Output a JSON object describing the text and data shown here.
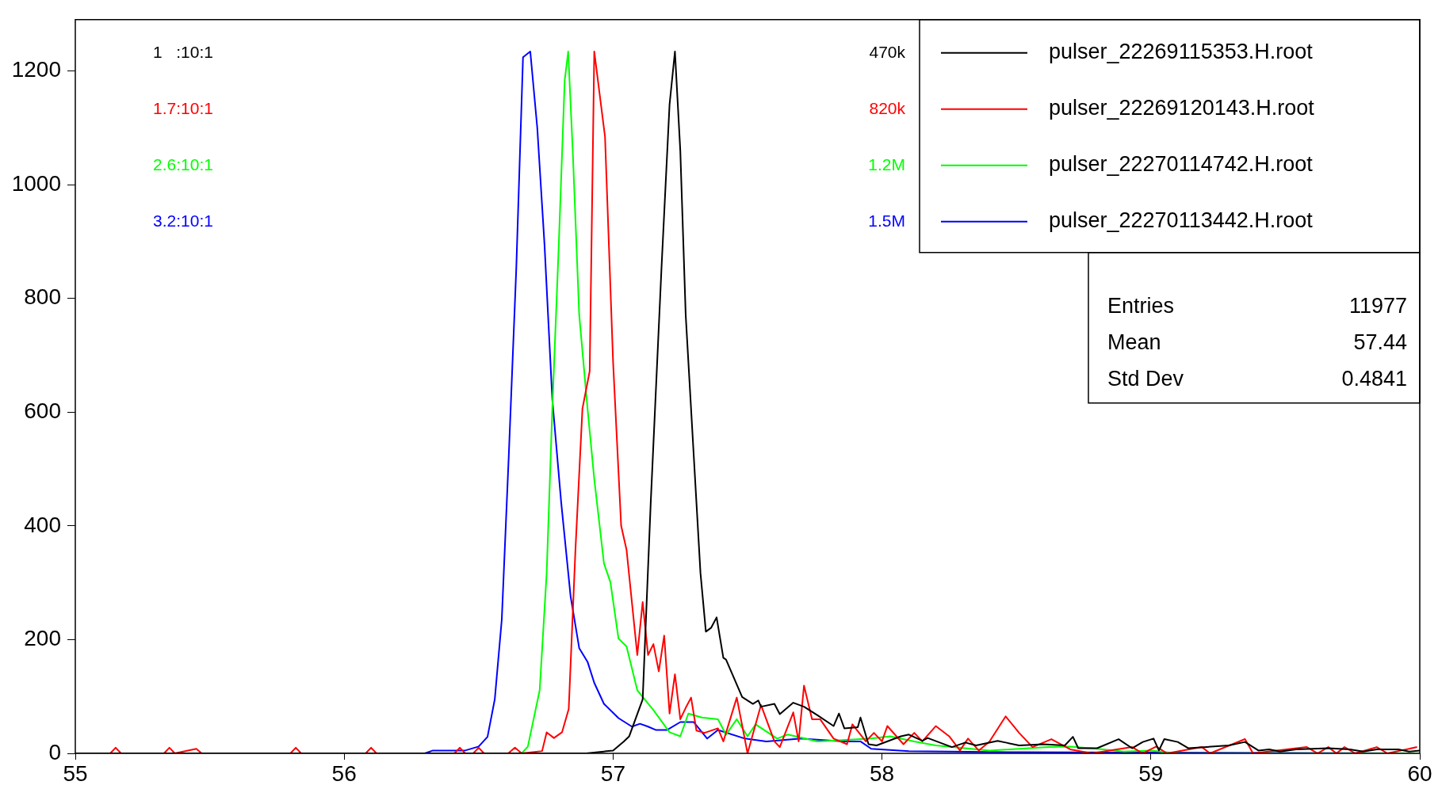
{
  "chart_data": {
    "type": "line",
    "xlim": [
      55,
      60
    ],
    "xticks": [
      55,
      56,
      57,
      58,
      59,
      60
    ],
    "ylim": [
      0,
      1290
    ],
    "yticks": [
      0,
      200,
      400,
      600,
      800,
      1000,
      1200
    ],
    "grid": false,
    "legend": "top right",
    "marker": "none",
    "line_style": "solid",
    "annotations": [
      "1   :10:1",
      "1.7:10:1",
      "2.6:10:1",
      "3.2:10:1",
      "470k",
      "820k",
      "1.2M",
      "1.5M",
      "Entries",
      "11977",
      "Mean",
      "57.44",
      "Std Dev",
      "0.4841"
    ],
    "series": [
      {
        "name": "pulser_22269115353.H.root",
        "color": "#000000",
        "x": [
          55,
          56.9,
          57.0,
          57.04,
          57.06,
          57.11,
          57.14,
          57.18,
          57.21,
          57.23,
          57.25,
          57.27,
          57.3,
          57.325,
          57.345,
          57.365,
          57.385,
          57.41,
          57.42,
          57.48,
          57.52,
          57.54,
          57.55,
          57.6,
          57.62,
          57.67,
          57.71,
          57.76,
          57.82,
          57.84,
          57.86,
          57.91,
          57.92,
          57.95,
          57.98,
          58.07,
          58.1,
          58.15,
          58.17,
          58.26,
          58.31,
          58.35,
          58.43,
          58.46,
          58.51,
          58.6,
          58.68,
          58.71,
          58.73,
          58.8,
          58.88,
          58.93,
          58.97,
          59.01,
          59.03,
          59.05,
          59.1,
          59.14,
          59.29,
          59.35,
          59.4,
          59.44,
          59.48,
          59.54,
          59.66,
          59.74,
          59.79,
          59.84,
          59.92,
          59.96,
          60
        ],
        "values": [
          0,
          0,
          5,
          21,
          30,
          95,
          441,
          853,
          1141,
          1234,
          1059,
          771,
          523,
          317,
          214,
          221,
          239,
          168,
          165,
          99,
          87,
          93,
          82,
          87,
          69,
          89,
          82,
          67,
          48,
          70,
          44,
          46,
          63,
          16,
          14,
          30,
          33,
          22,
          27,
          11,
          19,
          14,
          22,
          19,
          14,
          16,
          14,
          29,
          9,
          9,
          25,
          9,
          20,
          26,
          5,
          25,
          20,
          9,
          14,
          20,
          5,
          7,
          3,
          7,
          9,
          7,
          3,
          7,
          7,
          3,
          5
        ]
      },
      {
        "name": "pulser_22269120143.H.root",
        "color": "#ff0000",
        "x": [
          55,
          55.13,
          55.15,
          55.17,
          55.33,
          55.35,
          55.37,
          55.45,
          55.47,
          55.8,
          55.82,
          55.84,
          56.08,
          56.1,
          56.12,
          56.41,
          56.43,
          56.45,
          56.48,
          56.5,
          56.52,
          56.61,
          56.635,
          56.66,
          56.736,
          56.753,
          56.78,
          56.81,
          56.835,
          56.86,
          56.886,
          56.913,
          56.93,
          56.97,
          57.0,
          57.03,
          57.05,
          57.09,
          57.11,
          57.13,
          57.15,
          57.17,
          57.19,
          57.21,
          57.23,
          57.25,
          57.27,
          57.29,
          57.31,
          57.34,
          57.39,
          57.41,
          57.46,
          57.5,
          57.55,
          57.6,
          57.62,
          57.67,
          57.69,
          57.71,
          57.74,
          57.77,
          57.82,
          57.87,
          57.89,
          57.94,
          57.97,
          58.0,
          58.02,
          58.08,
          58.12,
          58.15,
          58.2,
          58.25,
          58.29,
          58.32,
          58.36,
          58.4,
          58.46,
          58.51,
          58.56,
          58.63,
          58.7,
          58.78,
          58.93,
          58.97,
          59.02,
          59.06,
          59.19,
          59.22,
          59.35,
          59.38,
          59.58,
          59.62,
          59.66,
          59.69,
          59.72,
          59.76,
          59.84,
          59.88,
          59.99
        ],
        "values": [
          0,
          0,
          10,
          0,
          0,
          10,
          0,
          8,
          0,
          0,
          10,
          0,
          0,
          10,
          0,
          0,
          10,
          0,
          0,
          10,
          0,
          0,
          10,
          0,
          4,
          37,
          27,
          37,
          78,
          358,
          606,
          672,
          1234,
          1084,
          688,
          400,
          358,
          173,
          266,
          173,
          192,
          144,
          207,
          70,
          139,
          60,
          80,
          98,
          40,
          36,
          44,
          21,
          98,
          0,
          85,
          21,
          11,
          72,
          21,
          119,
          60,
          60,
          26,
          16,
          51,
          21,
          36,
          21,
          48,
          16,
          36,
          21,
          48,
          30,
          5,
          26,
          5,
          21,
          65,
          36,
          11,
          25,
          7,
          0,
          11,
          0,
          12,
          0,
          11,
          0,
          25,
          0,
          11,
          0,
          11,
          0,
          11,
          0,
          11,
          0,
          11
        ]
      },
      {
        "name": "pulser_22270114742.H.root",
        "color": "#00ff00",
        "x": [
          55,
          56.66,
          56.683,
          56.727,
          56.753,
          56.774,
          56.798,
          56.82,
          56.833,
          56.85,
          56.874,
          56.905,
          56.93,
          56.966,
          56.99,
          57.02,
          57.05,
          57.09,
          57.15,
          57.21,
          57.25,
          57.28,
          57.33,
          57.39,
          57.42,
          57.46,
          57.5,
          57.53,
          57.61,
          57.65,
          57.76,
          57.96,
          58.03,
          58.12,
          58.2,
          58.4,
          58.62,
          58.7,
          58.8,
          58.9,
          59.0,
          59.1,
          60
        ],
        "values": [
          0,
          0,
          12,
          111,
          317,
          606,
          894,
          1183,
          1234,
          1059,
          771,
          606,
          482,
          334,
          301,
          202,
          188,
          111,
          76,
          37,
          30,
          70,
          63,
          60,
          33,
          60,
          30,
          51,
          26,
          33,
          21,
          26,
          30,
          21,
          14,
          5,
          11,
          12,
          8,
          3,
          5,
          0,
          0
        ]
      },
      {
        "name": "pulser_22270113442.H.root",
        "color": "#0000ff",
        "x": [
          55,
          56.3,
          56.33,
          56.45,
          56.5,
          56.533,
          56.56,
          56.586,
          56.612,
          56.64,
          56.665,
          56.692,
          56.718,
          56.745,
          56.774,
          56.807,
          56.842,
          56.874,
          56.905,
          56.93,
          56.966,
          57.02,
          57.07,
          57.1,
          57.13,
          57.16,
          57.2,
          57.25,
          57.3,
          57.35,
          57.39,
          57.49,
          57.57,
          57.7,
          57.86,
          57.92,
          57.96,
          58.1,
          58.5,
          60
        ],
        "values": [
          0,
          0,
          5,
          5,
          12,
          29,
          95,
          235,
          523,
          853,
          1224,
          1234,
          1100,
          894,
          622,
          441,
          276,
          185,
          161,
          124,
          87,
          62,
          47,
          52,
          47,
          41,
          41,
          55,
          55,
          26,
          41,
          26,
          21,
          26,
          21,
          21,
          8,
          4,
          2,
          0
        ]
      }
    ]
  }
}
